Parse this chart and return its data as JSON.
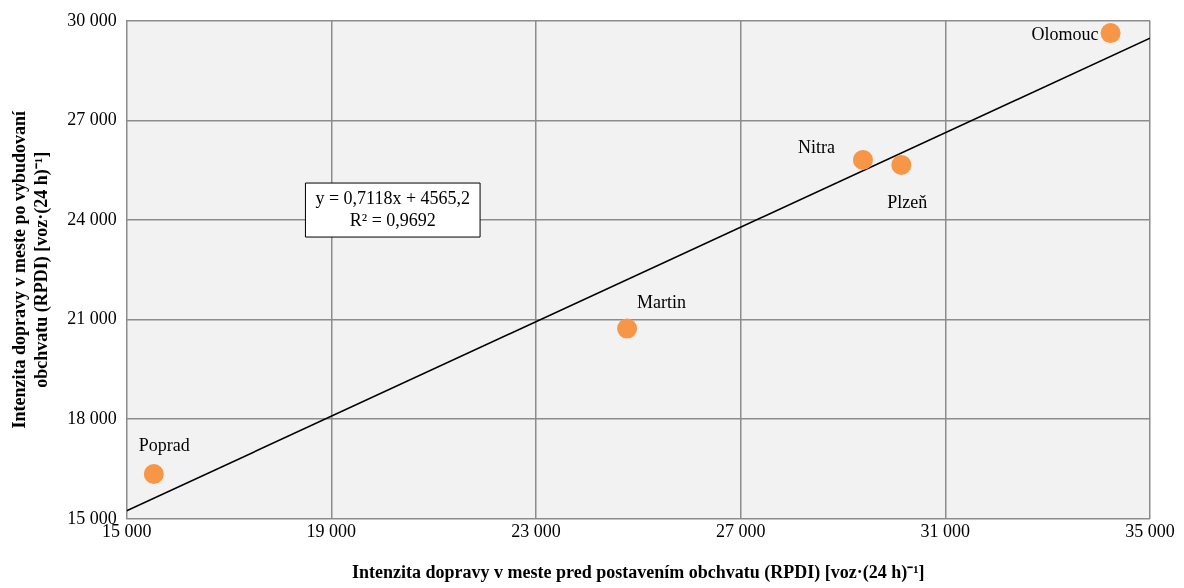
{
  "chart_data": {
    "type": "scatter",
    "xlabel": "Intenzita dopravy v meste pred postavením obchvatu (RPDI) [voz·(24 h)⁻¹]",
    "ylabel": "Intenzita dopravy v meste po vybudovaní obchvatu (RPDI) [voz·(24 h)⁻¹]",
    "xlim": [
      15000,
      35000
    ],
    "xticks": [
      {
        "value": 15000,
        "label": "15 000"
      },
      {
        "value": 19000,
        "label": "19 000"
      },
      {
        "value": 23000,
        "label": "23 000"
      },
      {
        "value": 27000,
        "label": "27 000"
      },
      {
        "value": 31000,
        "label": "31 000"
      },
      {
        "value": 35000,
        "label": "35 000"
      }
    ],
    "ylim": [
      15000,
      30000
    ],
    "yticks": [
      {
        "value": 15000,
        "label": "15 000"
      },
      {
        "value": 18000,
        "label": "18 000"
      },
      {
        "value": 21000,
        "label": "21 000"
      },
      {
        "value": 24000,
        "label": "24 000"
      },
      {
        "value": 27000,
        "label": "27 000"
      },
      {
        "value": 30000,
        "label": "30 000"
      }
    ],
    "grid": true,
    "legend": false,
    "marker": "circle",
    "series": [
      {
        "name": "Poprad",
        "color": "#f79646",
        "x": [
          15530
        ],
        "values": [
          16350
        ]
      },
      {
        "name": "Martin",
        "color": "#f79646",
        "x": [
          24780
        ],
        "values": [
          20730
        ]
      },
      {
        "name": "Nitra",
        "color": "#f79646",
        "x": [
          29390
        ],
        "values": [
          25810
        ]
      },
      {
        "name": "Plzeň",
        "color": "#f79646",
        "x": [
          30140
        ],
        "values": [
          25660
        ]
      },
      {
        "name": "Olomouc",
        "color": "#f79646",
        "x": [
          34230
        ],
        "values": [
          29630
        ]
      },
      {
        "type": "line",
        "color": "#000000",
        "x": [
          15000,
          35000
        ],
        "values": [
          15242,
          29478
        ],
        "marker": "none"
      }
    ],
    "annotations": [
      "y = 0,7118x + 4565,2\nR² = 0,9692"
    ]
  }
}
